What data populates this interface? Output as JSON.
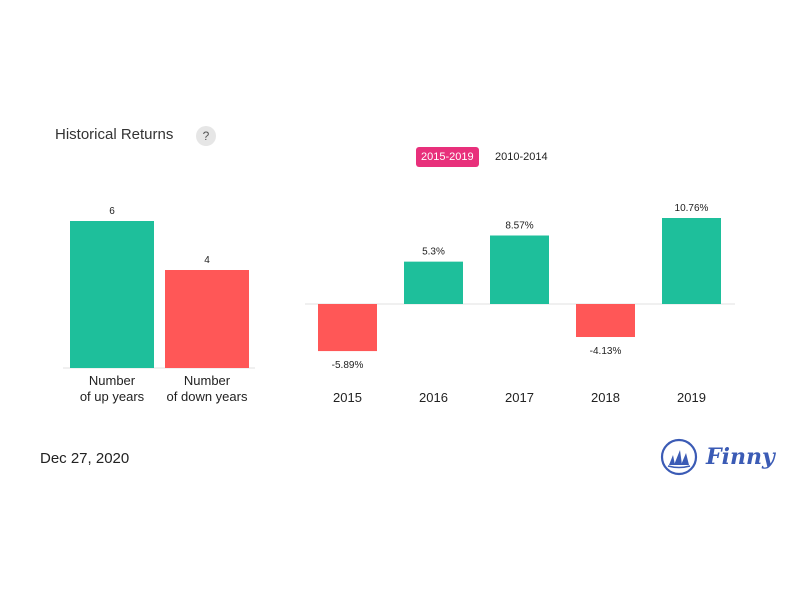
{
  "header": {
    "title": "Historical Returns",
    "help_label": "?"
  },
  "tabs": [
    {
      "label": "2015-2019",
      "active": true
    },
    {
      "label": "2010-2014",
      "active": false
    }
  ],
  "footer": {
    "date": "Dec 27, 2020",
    "brand": "Finny"
  },
  "colors": {
    "positive": "#1ebf9b",
    "negative": "#ff5757",
    "accent": "#e8307b",
    "brand": "#3b5bb5"
  },
  "chart_data": [
    {
      "type": "bar",
      "categories": [
        [
          "Number",
          "of up years"
        ],
        [
          "Number",
          "of down years"
        ]
      ],
      "values": [
        6,
        4
      ],
      "labels": [
        "6",
        "4"
      ],
      "ylim": [
        0,
        6
      ]
    },
    {
      "type": "bar",
      "categories": [
        "2015",
        "2016",
        "2017",
        "2018",
        "2019"
      ],
      "values": [
        -5.89,
        5.3,
        8.57,
        -4.13,
        10.76
      ],
      "labels": [
        "-5.89%",
        "5.3%",
        "8.57%",
        "-4.13%",
        "10.76%"
      ],
      "ylim": [
        -8,
        12
      ]
    }
  ]
}
